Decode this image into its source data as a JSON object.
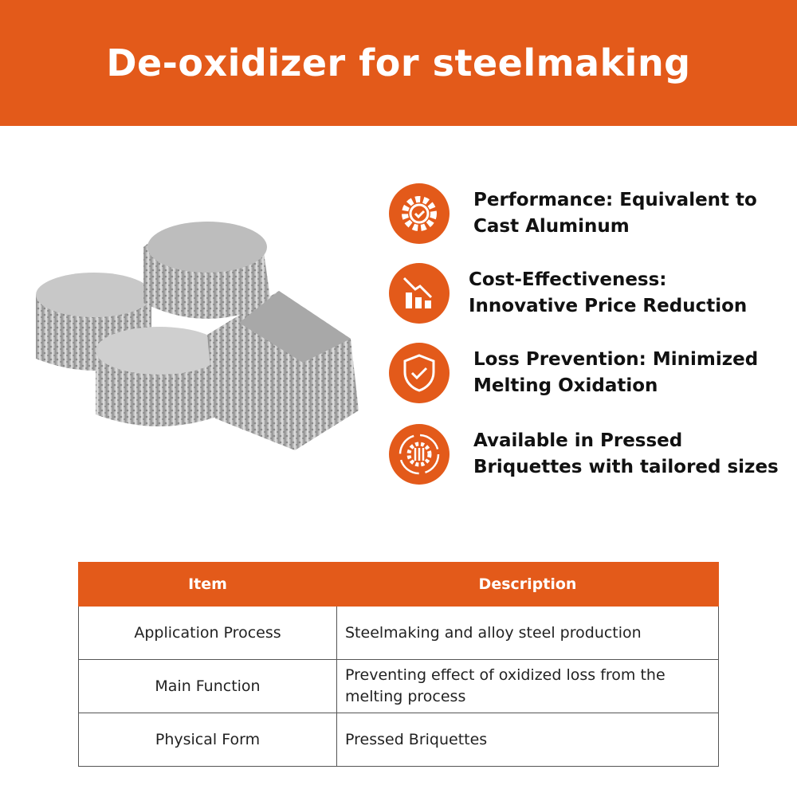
{
  "header": {
    "title": "De-oxidizer for steelmaking"
  },
  "colors": {
    "accent": "#E35A1A"
  },
  "features": [
    {
      "icon": "gear-check-icon",
      "line1": "Performance: Equivalent to",
      "line2": "Cast Aluminum"
    },
    {
      "icon": "chart-down-icon",
      "line1": "Cost-Effectiveness:",
      "line2": "Innovative Price Reduction"
    },
    {
      "icon": "shield-check-icon",
      "line1": "Loss Prevention: Minimized",
      "line2": "Melting Oxidation"
    },
    {
      "icon": "gear-sliders-cycle-icon",
      "line1": "Available in Pressed",
      "line2": "Briquettes with tailored sizes"
    }
  ],
  "table": {
    "headers": [
      "Item",
      "Description"
    ],
    "rows": [
      {
        "item": "Application Process",
        "description": "Steelmaking and alloy steel production"
      },
      {
        "item": "Main Function",
        "description": "Preventing effect of oxidized loss from the melting process"
      },
      {
        "item": "Physical Form",
        "description": "Pressed Briquettes"
      }
    ]
  }
}
